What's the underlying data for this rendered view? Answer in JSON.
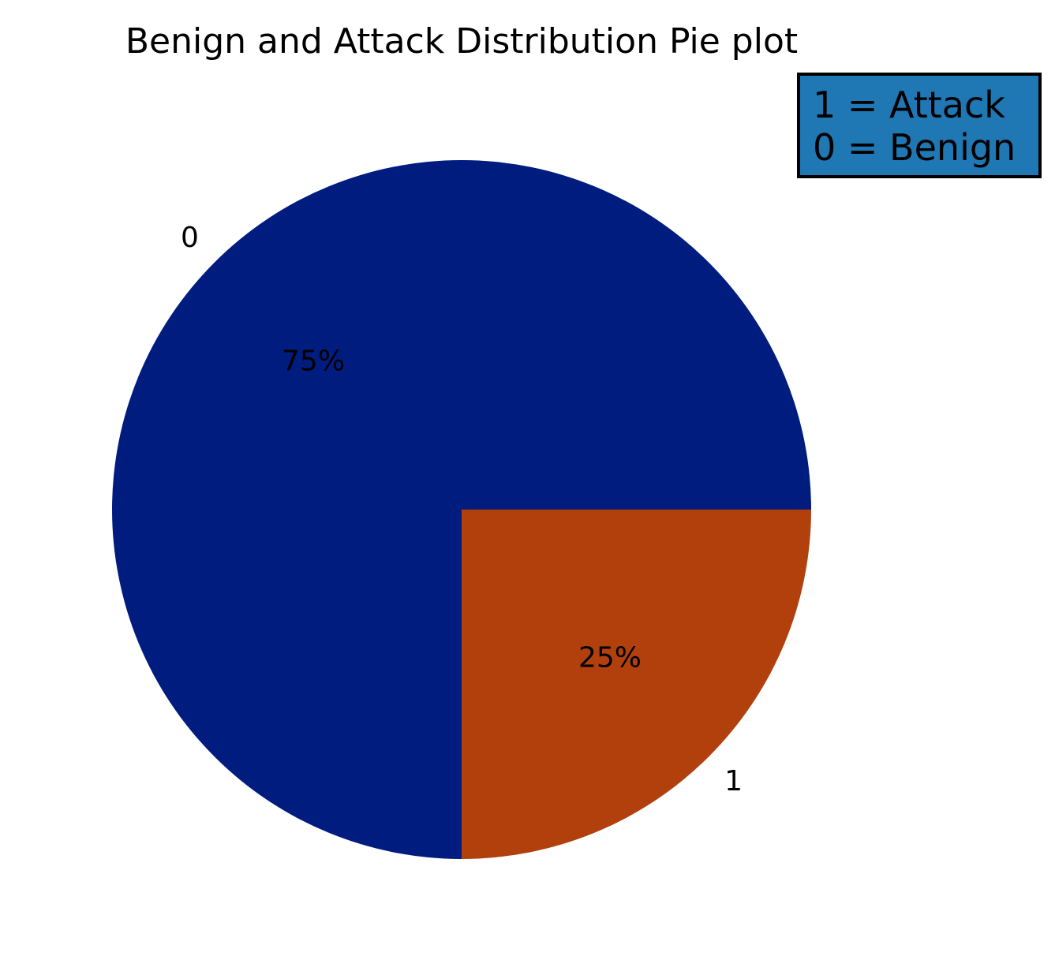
{
  "chart_data": {
    "type": "pie",
    "title": "Benign and Attack Distribution Pie plot",
    "slices": [
      {
        "label": "0",
        "value": 75,
        "pct_label": "75%",
        "color": "#001c7f"
      },
      {
        "label": "1",
        "value": 25,
        "pct_label": "25%",
        "color": "#b1400d"
      }
    ],
    "start_angle_deg": 0,
    "direction": "counterclockwise",
    "legend": {
      "lines": [
        "1 = Attack",
        "0 = Benign"
      ],
      "background": "#1f77b4",
      "placement": "top-right"
    }
  }
}
